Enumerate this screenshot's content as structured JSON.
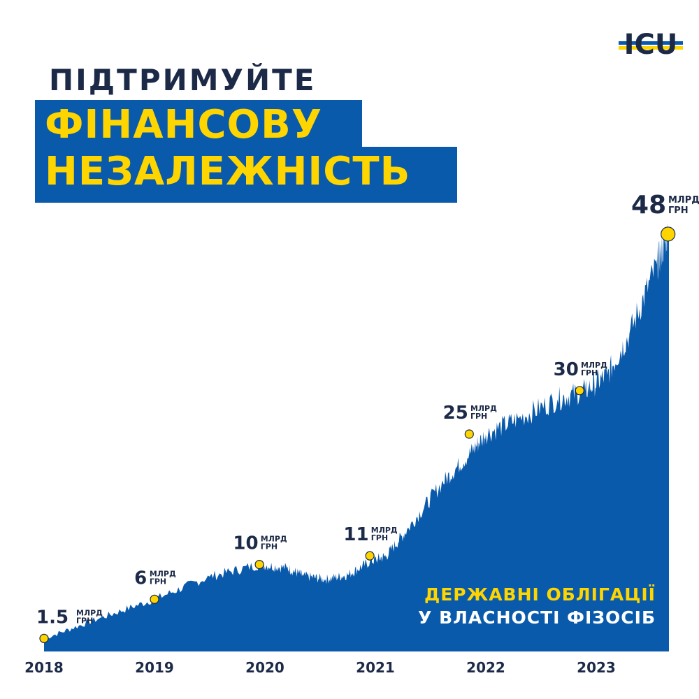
{
  "header": {
    "subtitle": "ПІДТРИМУЙТЕ",
    "headline_line1": "ФІНАНСОВУ",
    "headline_line2": "НЕЗАЛЕЖНІСТЬ"
  },
  "logo": {
    "text": "ICU",
    "icon": "icu-logo-icon"
  },
  "colors": {
    "brand_blue": "#0a5aab",
    "accent_yellow": "#ffd500",
    "dark_text": "#1c2a48"
  },
  "chart_data": {
    "type": "area",
    "title": "",
    "xlabel": "",
    "ylabel": "",
    "legend": [
      "ДЕРЖАВНІ ОБЛІГАЦІЇ",
      "У ВЛАСНОСТІ ФІЗОСІБ"
    ],
    "x_ticks": [
      "2018",
      "2019",
      "2020",
      "2021",
      "2022",
      "2023"
    ],
    "unit_line1": "МЛРД",
    "unit_line2": "ГРН",
    "ylim": [
      0,
      50
    ],
    "series": [
      {
        "x": [
          2018.0,
          2018.5,
          2019.0,
          2019.5,
          2019.95,
          2020.2,
          2020.35,
          2020.55,
          2020.75,
          2020.95,
          2021.1,
          2021.3,
          2021.6,
          2021.85,
          2022.0,
          2022.3,
          2022.65,
          2022.9,
          2023.1,
          2023.3,
          2023.55,
          2023.65
        ],
        "values": [
          1.5,
          3.8,
          6.0,
          8.6,
          10.0,
          9.6,
          8.7,
          8.3,
          8.8,
          10.3,
          11.0,
          14.2,
          19.3,
          22.7,
          25.0,
          26.8,
          29.0,
          30.0,
          31.8,
          36.5,
          44.5,
          48.0
        ]
      }
    ],
    "annotations": [
      {
        "x": 2018.0,
        "y": 1.5,
        "label": "1.5"
      },
      {
        "x": 2019.0,
        "y": 6,
        "label": "6"
      },
      {
        "x": 2019.95,
        "y": 10,
        "label": "10"
      },
      {
        "x": 2020.95,
        "y": 11,
        "label": "11"
      },
      {
        "x": 2021.85,
        "y": 25,
        "label": "25"
      },
      {
        "x": 2022.85,
        "y": 30,
        "label": "30"
      },
      {
        "x": 2023.65,
        "y": 48,
        "label": "48"
      }
    ]
  }
}
